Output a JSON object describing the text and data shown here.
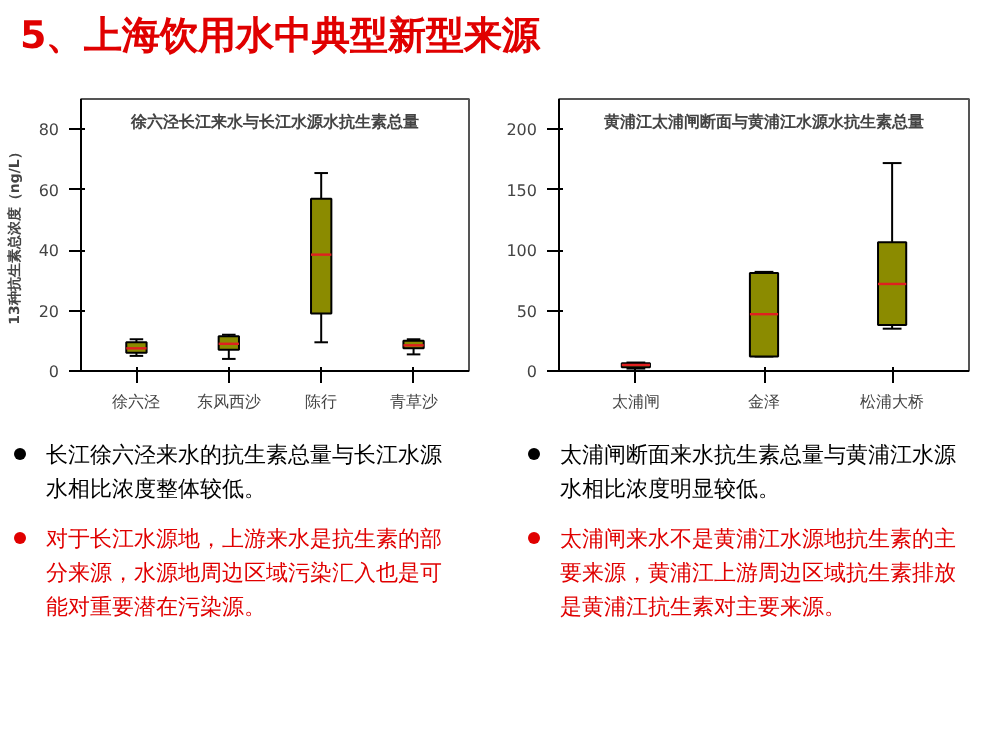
{
  "chart_data": [
    {
      "type": "other",
      "title": "5、上海饮用水中典型新型来源"
    },
    {
      "type": "box",
      "title": "徐六泾长江来水与长江水源水抗生素总量",
      "ylabel": "13种抗生素总浓度（ng/L）",
      "categories": [
        "徐六泾",
        "东风西沙",
        "陈行",
        "青草沙"
      ],
      "color": "#8b8b00",
      "ylim": [
        0,
        90
      ],
      "yticks": [
        0,
        20,
        40,
        60,
        80
      ],
      "grid": false,
      "boxes": [
        {
          "low": 5,
          "q1": 6,
          "median": 7.5,
          "q3": 9.5,
          "high": 10.5
        },
        {
          "low": 4,
          "q1": 7,
          "median": 9,
          "q3": 11.5,
          "high": 12
        },
        {
          "low": 9.5,
          "q1": 19,
          "median": 38.5,
          "q3": 57,
          "high": 65.5
        },
        {
          "low": 5.5,
          "q1": 7.5,
          "median": 8.5,
          "q3": 10,
          "high": 10.5
        }
      ],
      "annotations": [
        "长江徐六泾来水的抗生素总量与长江水源水相比浓度整体较低。",
        "对于长江水源地，上游来水是抗生素的部分来源，水源地周边区域污染汇入也是可能对重要潜在污染源。"
      ]
    },
    {
      "type": "box",
      "title": "黄浦江太浦闸断面与黄浦江水源水抗生素总量",
      "categories": [
        "太浦闸",
        "金泽",
        "松浦大桥"
      ],
      "color": "#8b8b00",
      "ylim": [
        0,
        225
      ],
      "yticks": [
        0,
        50,
        100,
        150,
        200
      ],
      "grid": false,
      "boxes": [
        {
          "low": 2,
          "q1": 3,
          "median": 5,
          "q3": 6.5,
          "high": 7
        },
        {
          "low": 12,
          "q1": 12,
          "median": 47,
          "q3": 81,
          "high": 82
        },
        {
          "low": 35,
          "q1": 38,
          "median": 72,
          "q3": 106.5,
          "high": 172
        }
      ],
      "annotations": [
        "太浦闸断面来水抗生素总量与黄浦江水源水相比浓度明显较低。",
        "太浦闸来水不是黄浦江水源地抗生素的主要来源，黄浦江上游周边区域抗生素排放是黄浦江抗生素对主要来源。"
      ]
    }
  ]
}
